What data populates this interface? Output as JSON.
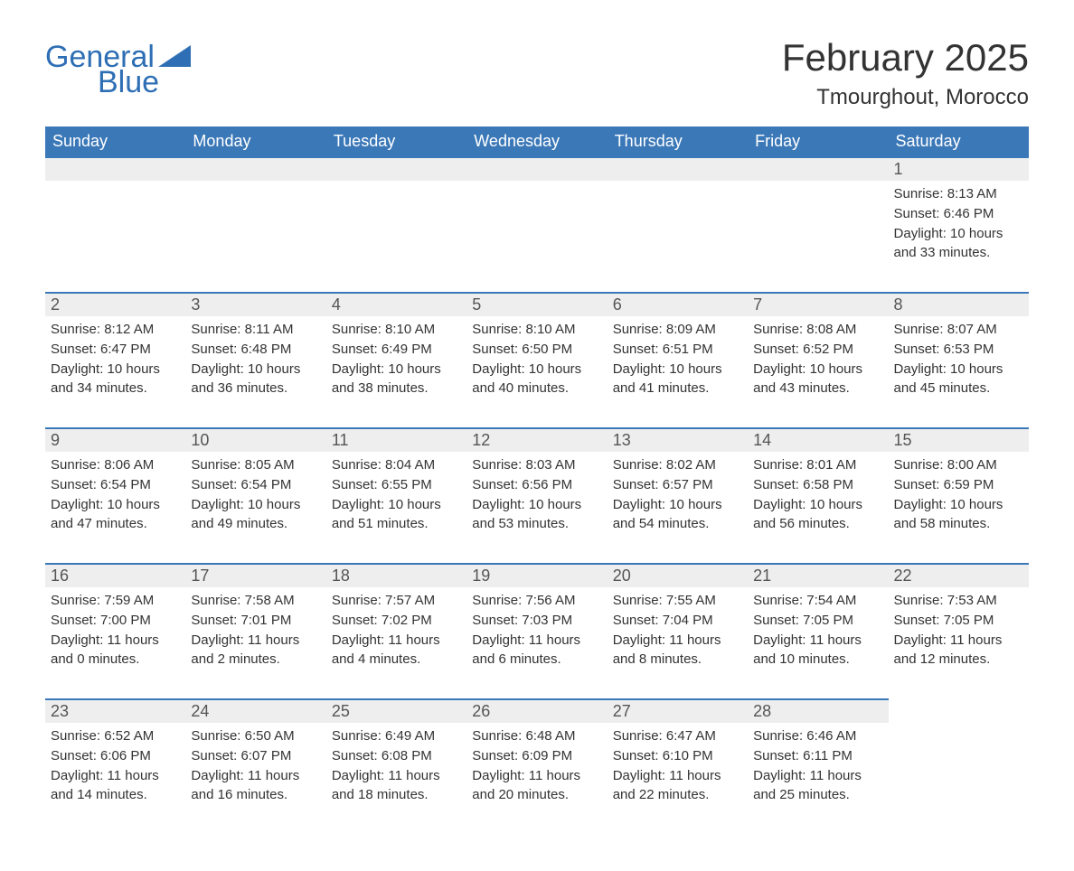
{
  "logo": {
    "text1": "General",
    "text2": "Blue",
    "color": "#2e6eb4"
  },
  "title": "February 2025",
  "location": "Tmourghout, Morocco",
  "colors": {
    "header_bg": "#3b78b8",
    "header_text": "#ffffff",
    "daynum_bg": "#eeeeee",
    "text": "#333333",
    "row_border": "#3b78b8",
    "background": "#ffffff"
  },
  "typography": {
    "title_fontsize": 42,
    "location_fontsize": 24,
    "header_fontsize": 18,
    "daynum_fontsize": 18,
    "body_fontsize": 15
  },
  "calendar": {
    "type": "table",
    "columns": [
      "Sunday",
      "Monday",
      "Tuesday",
      "Wednesday",
      "Thursday",
      "Friday",
      "Saturday"
    ],
    "weeks": [
      [
        null,
        null,
        null,
        null,
        null,
        null,
        {
          "day": 1,
          "sunrise": "8:13 AM",
          "sunset": "6:46 PM",
          "daylight": "10 hours and 33 minutes."
        }
      ],
      [
        {
          "day": 2,
          "sunrise": "8:12 AM",
          "sunset": "6:47 PM",
          "daylight": "10 hours and 34 minutes."
        },
        {
          "day": 3,
          "sunrise": "8:11 AM",
          "sunset": "6:48 PM",
          "daylight": "10 hours and 36 minutes."
        },
        {
          "day": 4,
          "sunrise": "8:10 AM",
          "sunset": "6:49 PM",
          "daylight": "10 hours and 38 minutes."
        },
        {
          "day": 5,
          "sunrise": "8:10 AM",
          "sunset": "6:50 PM",
          "daylight": "10 hours and 40 minutes."
        },
        {
          "day": 6,
          "sunrise": "8:09 AM",
          "sunset": "6:51 PM",
          "daylight": "10 hours and 41 minutes."
        },
        {
          "day": 7,
          "sunrise": "8:08 AM",
          "sunset": "6:52 PM",
          "daylight": "10 hours and 43 minutes."
        },
        {
          "day": 8,
          "sunrise": "8:07 AM",
          "sunset": "6:53 PM",
          "daylight": "10 hours and 45 minutes."
        }
      ],
      [
        {
          "day": 9,
          "sunrise": "8:06 AM",
          "sunset": "6:54 PM",
          "daylight": "10 hours and 47 minutes."
        },
        {
          "day": 10,
          "sunrise": "8:05 AM",
          "sunset": "6:54 PM",
          "daylight": "10 hours and 49 minutes."
        },
        {
          "day": 11,
          "sunrise": "8:04 AM",
          "sunset": "6:55 PM",
          "daylight": "10 hours and 51 minutes."
        },
        {
          "day": 12,
          "sunrise": "8:03 AM",
          "sunset": "6:56 PM",
          "daylight": "10 hours and 53 minutes."
        },
        {
          "day": 13,
          "sunrise": "8:02 AM",
          "sunset": "6:57 PM",
          "daylight": "10 hours and 54 minutes."
        },
        {
          "day": 14,
          "sunrise": "8:01 AM",
          "sunset": "6:58 PM",
          "daylight": "10 hours and 56 minutes."
        },
        {
          "day": 15,
          "sunrise": "8:00 AM",
          "sunset": "6:59 PM",
          "daylight": "10 hours and 58 minutes."
        }
      ],
      [
        {
          "day": 16,
          "sunrise": "7:59 AM",
          "sunset": "7:00 PM",
          "daylight": "11 hours and 0 minutes."
        },
        {
          "day": 17,
          "sunrise": "7:58 AM",
          "sunset": "7:01 PM",
          "daylight": "11 hours and 2 minutes."
        },
        {
          "day": 18,
          "sunrise": "7:57 AM",
          "sunset": "7:02 PM",
          "daylight": "11 hours and 4 minutes."
        },
        {
          "day": 19,
          "sunrise": "7:56 AM",
          "sunset": "7:03 PM",
          "daylight": "11 hours and 6 minutes."
        },
        {
          "day": 20,
          "sunrise": "7:55 AM",
          "sunset": "7:04 PM",
          "daylight": "11 hours and 8 minutes."
        },
        {
          "day": 21,
          "sunrise": "7:54 AM",
          "sunset": "7:05 PM",
          "daylight": "11 hours and 10 minutes."
        },
        {
          "day": 22,
          "sunrise": "7:53 AM",
          "sunset": "7:05 PM",
          "daylight": "11 hours and 12 minutes."
        }
      ],
      [
        {
          "day": 23,
          "sunrise": "6:52 AM",
          "sunset": "6:06 PM",
          "daylight": "11 hours and 14 minutes."
        },
        {
          "day": 24,
          "sunrise": "6:50 AM",
          "sunset": "6:07 PM",
          "daylight": "11 hours and 16 minutes."
        },
        {
          "day": 25,
          "sunrise": "6:49 AM",
          "sunset": "6:08 PM",
          "daylight": "11 hours and 18 minutes."
        },
        {
          "day": 26,
          "sunrise": "6:48 AM",
          "sunset": "6:09 PM",
          "daylight": "11 hours and 20 minutes."
        },
        {
          "day": 27,
          "sunrise": "6:47 AM",
          "sunset": "6:10 PM",
          "daylight": "11 hours and 22 minutes."
        },
        {
          "day": 28,
          "sunrise": "6:46 AM",
          "sunset": "6:11 PM",
          "daylight": "11 hours and 25 minutes."
        },
        null
      ]
    ],
    "labels": {
      "sunrise": "Sunrise:",
      "sunset": "Sunset:",
      "daylight": "Daylight:"
    }
  }
}
